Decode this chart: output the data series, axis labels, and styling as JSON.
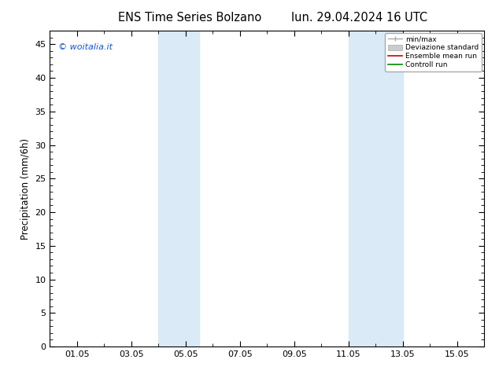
{
  "title_left": "ENS Time Series Bolzano",
  "title_right": "lun. 29.04.2024 16 UTC",
  "ylabel": "Precipitation (mm/6h)",
  "watermark": "© woitalia.it",
  "xmin": 0.0,
  "xmax": 16.0,
  "ymin": 0,
  "ymax": 47,
  "yticks": [
    0,
    5,
    10,
    15,
    20,
    25,
    30,
    35,
    40,
    45
  ],
  "xtick_labels": [
    "01.05",
    "03.05",
    "05.05",
    "07.05",
    "09.05",
    "11.05",
    "13.05",
    "15.05"
  ],
  "xtick_positions": [
    1,
    3,
    5,
    7,
    9,
    11,
    13,
    15
  ],
  "shaded_bands": [
    {
      "xmin": 4.0,
      "xmax": 5.5
    },
    {
      "xmin": 11.0,
      "xmax": 13.0
    }
  ],
  "shaded_color": "#daeaf6",
  "background_color": "#ffffff",
  "legend_items": [
    {
      "label": "min/max"
    },
    {
      "label": "Deviazione standard"
    },
    {
      "label": "Ensemble mean run"
    },
    {
      "label": "Controll run"
    }
  ],
  "legend_line_colors": [
    "#aaaaaa",
    "#cccccc",
    "#cc0000",
    "#008800"
  ],
  "watermark_color": "#1155cc",
  "title_fontsize": 10.5,
  "axis_fontsize": 8.5,
  "tick_fontsize": 8
}
